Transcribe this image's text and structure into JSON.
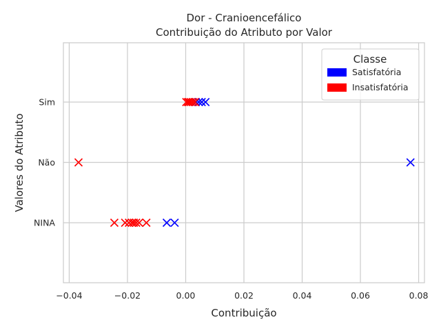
{
  "chart_data": {
    "type": "scatter",
    "title": "Dor - Cranioencefálico",
    "subtitle": "Contribuição do Atributo por Valor",
    "xlabel": "Contribuição",
    "ylabel": "Valores do Atributo",
    "xlim": [
      -0.042,
      0.082
    ],
    "x_ticks": [
      -0.04,
      -0.02,
      0.0,
      0.02,
      0.04,
      0.06,
      0.08
    ],
    "x_tick_labels": [
      "−0.04",
      "−0.02",
      "0.00",
      "0.02",
      "0.04",
      "0.06",
      "0.08"
    ],
    "categories": [
      "NINA",
      "Não",
      "Sim"
    ],
    "grid": true,
    "legend": {
      "title": "Classe",
      "placement": "top-right",
      "entries": [
        {
          "name": "Satisfatória",
          "color": "#0000ff"
        },
        {
          "name": "Insatisfatória",
          "color": "#ff0000"
        }
      ]
    },
    "marker": "x",
    "series": [
      {
        "name": "Satisfatória",
        "color": "#0000ff",
        "points": [
          {
            "x": 0.0035,
            "y": "Sim"
          },
          {
            "x": 0.0045,
            "y": "Sim"
          },
          {
            "x": 0.0055,
            "y": "Sim"
          },
          {
            "x": 0.0068,
            "y": "Sim"
          },
          {
            "x": 0.0772,
            "y": "Não"
          },
          {
            "x": -0.0065,
            "y": "NINA"
          },
          {
            "x": -0.0038,
            "y": "NINA"
          }
        ]
      },
      {
        "name": "Insatisfatória",
        "color": "#ff0000",
        "points": [
          {
            "x": 0.0002,
            "y": "Sim"
          },
          {
            "x": 0.0008,
            "y": "Sim"
          },
          {
            "x": 0.0012,
            "y": "Sim"
          },
          {
            "x": 0.0018,
            "y": "Sim"
          },
          {
            "x": 0.0025,
            "y": "Sim"
          },
          {
            "x": 0.0032,
            "y": "Sim"
          },
          {
            "x": -0.0368,
            "y": "Não"
          },
          {
            "x": -0.0245,
            "y": "NINA"
          },
          {
            "x": -0.0208,
            "y": "NINA"
          },
          {
            "x": -0.0195,
            "y": "NINA"
          },
          {
            "x": -0.0185,
            "y": "NINA"
          },
          {
            "x": -0.0178,
            "y": "NINA"
          },
          {
            "x": -0.017,
            "y": "NINA"
          },
          {
            "x": -0.016,
            "y": "NINA"
          },
          {
            "x": -0.0135,
            "y": "NINA"
          }
        ]
      }
    ]
  }
}
